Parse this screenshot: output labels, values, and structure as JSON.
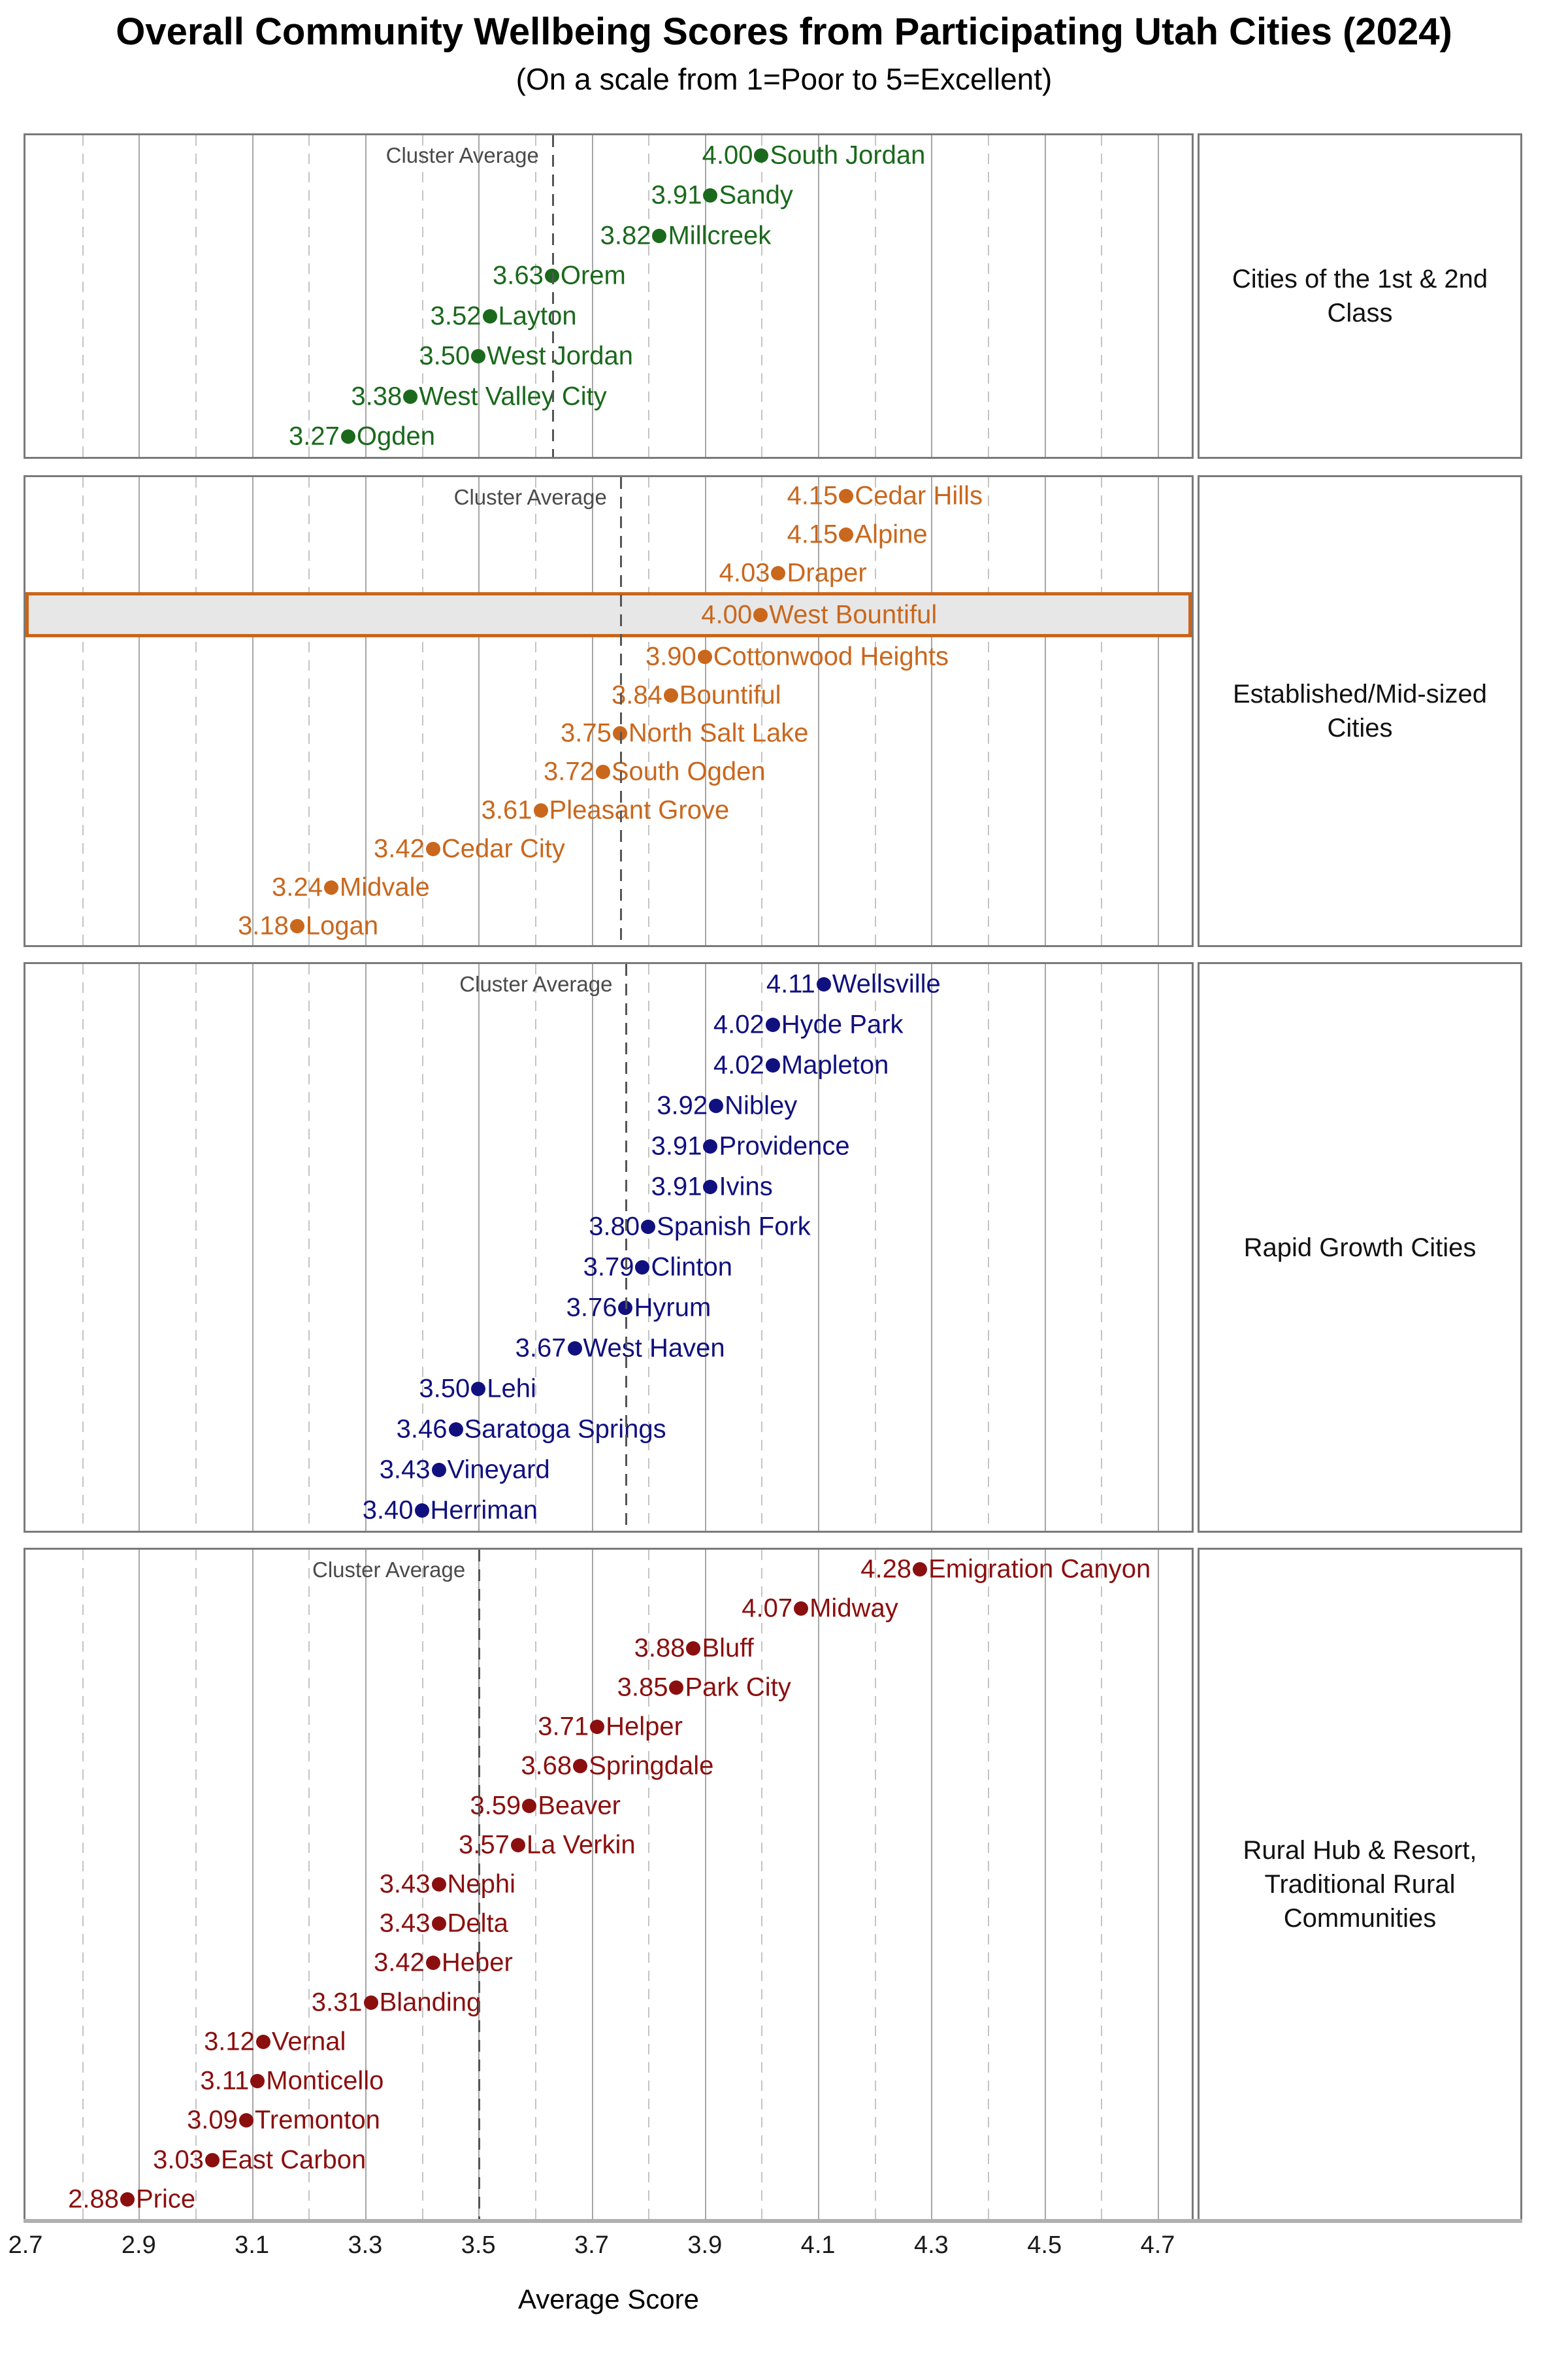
{
  "title": "Overall Community Wellbeing Scores from Participating Utah Cities (2024)",
  "subtitle": "(On a scale from 1=Poor to 5=Excellent)",
  "cluster_average_label": "Cluster Average",
  "highlight_style": {
    "fill": "#e7e7e7",
    "border": "#c8651b"
  },
  "chart_data": {
    "type": "scatter",
    "title": "Overall Community Wellbeing Scores from Participating Utah Cities (2024)",
    "subtitle": "(On a scale from 1=Poor to 5=Excellent)",
    "xlabel": "Average Score",
    "xlim": [
      2.7,
      4.76
    ],
    "xticks": [
      2.7,
      2.9,
      3.1,
      3.3,
      3.5,
      3.7,
      3.9,
      4.1,
      4.3,
      4.5,
      4.7
    ],
    "grid": "vertical, solid at labeled ticks, dashed at intermediate tenths",
    "legend_position": "none",
    "facets": [
      {
        "label": "Cities of the 1st & 2nd Class",
        "color": "#1a691c",
        "cluster_average": 3.63,
        "points": [
          {
            "city": "South Jordan",
            "score": 4.0
          },
          {
            "city": "Sandy",
            "score": 3.91
          },
          {
            "city": "Millcreek",
            "score": 3.82
          },
          {
            "city": "Orem",
            "score": 3.63
          },
          {
            "city": "Layton",
            "score": 3.52
          },
          {
            "city": "West Jordan",
            "score": 3.5
          },
          {
            "city": "West Valley City",
            "score": 3.38
          },
          {
            "city": "Ogden",
            "score": 3.27
          }
        ]
      },
      {
        "label": "Established/Mid-sized Cities",
        "color": "#c9671d",
        "cluster_average": 3.75,
        "points": [
          {
            "city": "Cedar Hills",
            "score": 4.15
          },
          {
            "city": "Alpine",
            "score": 4.15
          },
          {
            "city": "Draper",
            "score": 4.03
          },
          {
            "city": "West Bountiful",
            "score": 4.0,
            "highlighted": true
          },
          {
            "city": "Cottonwood Heights",
            "score": 3.9
          },
          {
            "city": "Bountiful",
            "score": 3.84
          },
          {
            "city": "North Salt Lake",
            "score": 3.75
          },
          {
            "city": "South Ogden",
            "score": 3.72
          },
          {
            "city": "Pleasant Grove",
            "score": 3.61
          },
          {
            "city": "Cedar City",
            "score": 3.42
          },
          {
            "city": "Midvale",
            "score": 3.24
          },
          {
            "city": "Logan",
            "score": 3.18
          }
        ]
      },
      {
        "label": "Rapid Growth Cities",
        "color": "#10107e",
        "cluster_average": 3.76,
        "points": [
          {
            "city": "Wellsville",
            "score": 4.11
          },
          {
            "city": "Hyde Park",
            "score": 4.02
          },
          {
            "city": "Mapleton",
            "score": 4.02
          },
          {
            "city": "Nibley",
            "score": 3.92
          },
          {
            "city": "Providence",
            "score": 3.91
          },
          {
            "city": "Ivins",
            "score": 3.91
          },
          {
            "city": "Spanish Fork",
            "score": 3.8
          },
          {
            "city": "Clinton",
            "score": 3.79
          },
          {
            "city": "Hyrum",
            "score": 3.76
          },
          {
            "city": "West Haven",
            "score": 3.67
          },
          {
            "city": "Lehi",
            "score": 3.5
          },
          {
            "city": "Saratoga Springs",
            "score": 3.46
          },
          {
            "city": "Vineyard",
            "score": 3.43
          },
          {
            "city": "Herriman",
            "score": 3.4
          }
        ]
      },
      {
        "label": "Rural Hub & Resort, Traditional Rural Communities",
        "color": "#8b0f0f",
        "cluster_average": 3.5,
        "points": [
          {
            "city": "Emigration Canyon",
            "score": 4.28
          },
          {
            "city": "Midway",
            "score": 4.07
          },
          {
            "city": "Bluff",
            "score": 3.88
          },
          {
            "city": "Park City",
            "score": 3.85
          },
          {
            "city": "Helper",
            "score": 3.71
          },
          {
            "city": "Springdale",
            "score": 3.68
          },
          {
            "city": "Beaver",
            "score": 3.59
          },
          {
            "city": "La Verkin",
            "score": 3.57
          },
          {
            "city": "Nephi",
            "score": 3.43
          },
          {
            "city": "Delta",
            "score": 3.43
          },
          {
            "city": "Heber",
            "score": 3.42
          },
          {
            "city": "Blanding",
            "score": 3.31
          },
          {
            "city": "Vernal",
            "score": 3.12
          },
          {
            "city": "Monticello",
            "score": 3.11
          },
          {
            "city": "Tremonton",
            "score": 3.09
          },
          {
            "city": "East Carbon",
            "score": 3.03
          },
          {
            "city": "Price",
            "score": 2.88
          }
        ]
      }
    ]
  }
}
